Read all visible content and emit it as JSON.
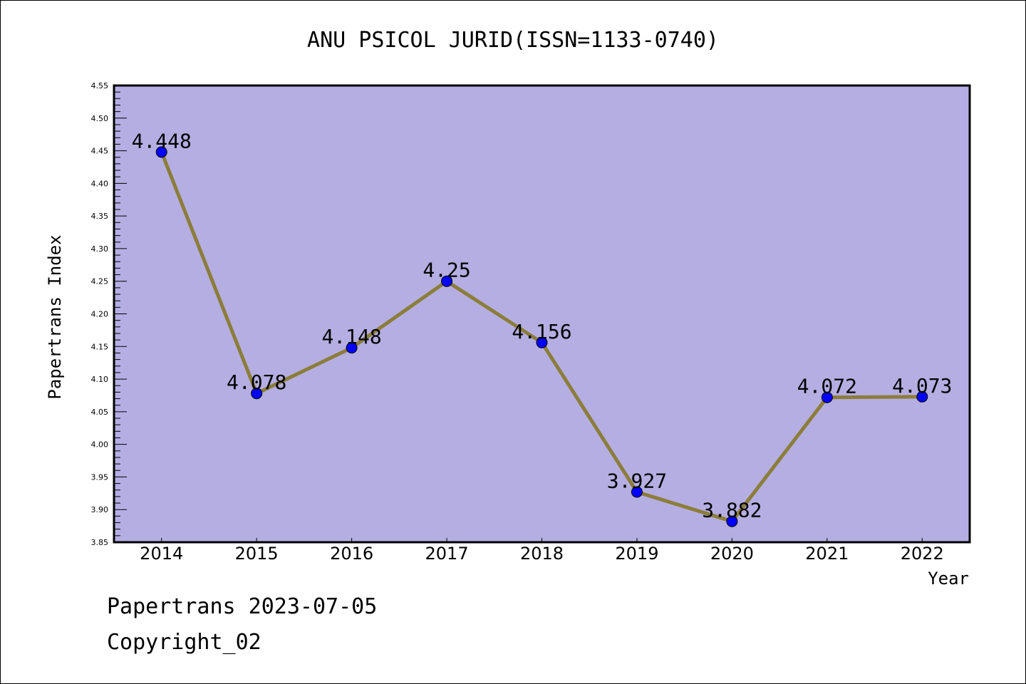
{
  "chart_data": {
    "type": "line",
    "title": "ANU PSICOL JURID(ISSN=1133-0740)",
    "xlabel": "Year",
    "ylabel": "Papertrans Index",
    "x": [
      2014,
      2015,
      2016,
      2017,
      2018,
      2019,
      2020,
      2021,
      2022
    ],
    "values": [
      4.448,
      4.078,
      4.148,
      4.25,
      4.156,
      3.927,
      3.882,
      4.072,
      4.073
    ],
    "data_labels": [
      "4.448",
      "4.078",
      "4.148",
      "4.25",
      "4.156",
      "3.927",
      "3.882",
      "4.072",
      "4.073"
    ],
    "ylim": [
      3.85,
      4.55
    ],
    "xlim": [
      2013.5,
      2022.5
    ],
    "yticks": [
      "3.85",
      "3.90",
      "3.95",
      "4.00",
      "4.05",
      "4.10",
      "4.15",
      "4.20",
      "4.25",
      "4.30",
      "4.35",
      "4.40",
      "4.45",
      "4.50",
      "4.55"
    ],
    "xticks": [
      "2014",
      "2015",
      "2016",
      "2017",
      "2018",
      "2019",
      "2020",
      "2021",
      "2022"
    ],
    "grid": false,
    "colors": {
      "background": "#b5aee2",
      "line": "#8b7d3a",
      "marker": "#0000ff"
    }
  },
  "footer": {
    "line1": "Papertrans 2023-07-05",
    "line2": "Copyright_02"
  }
}
